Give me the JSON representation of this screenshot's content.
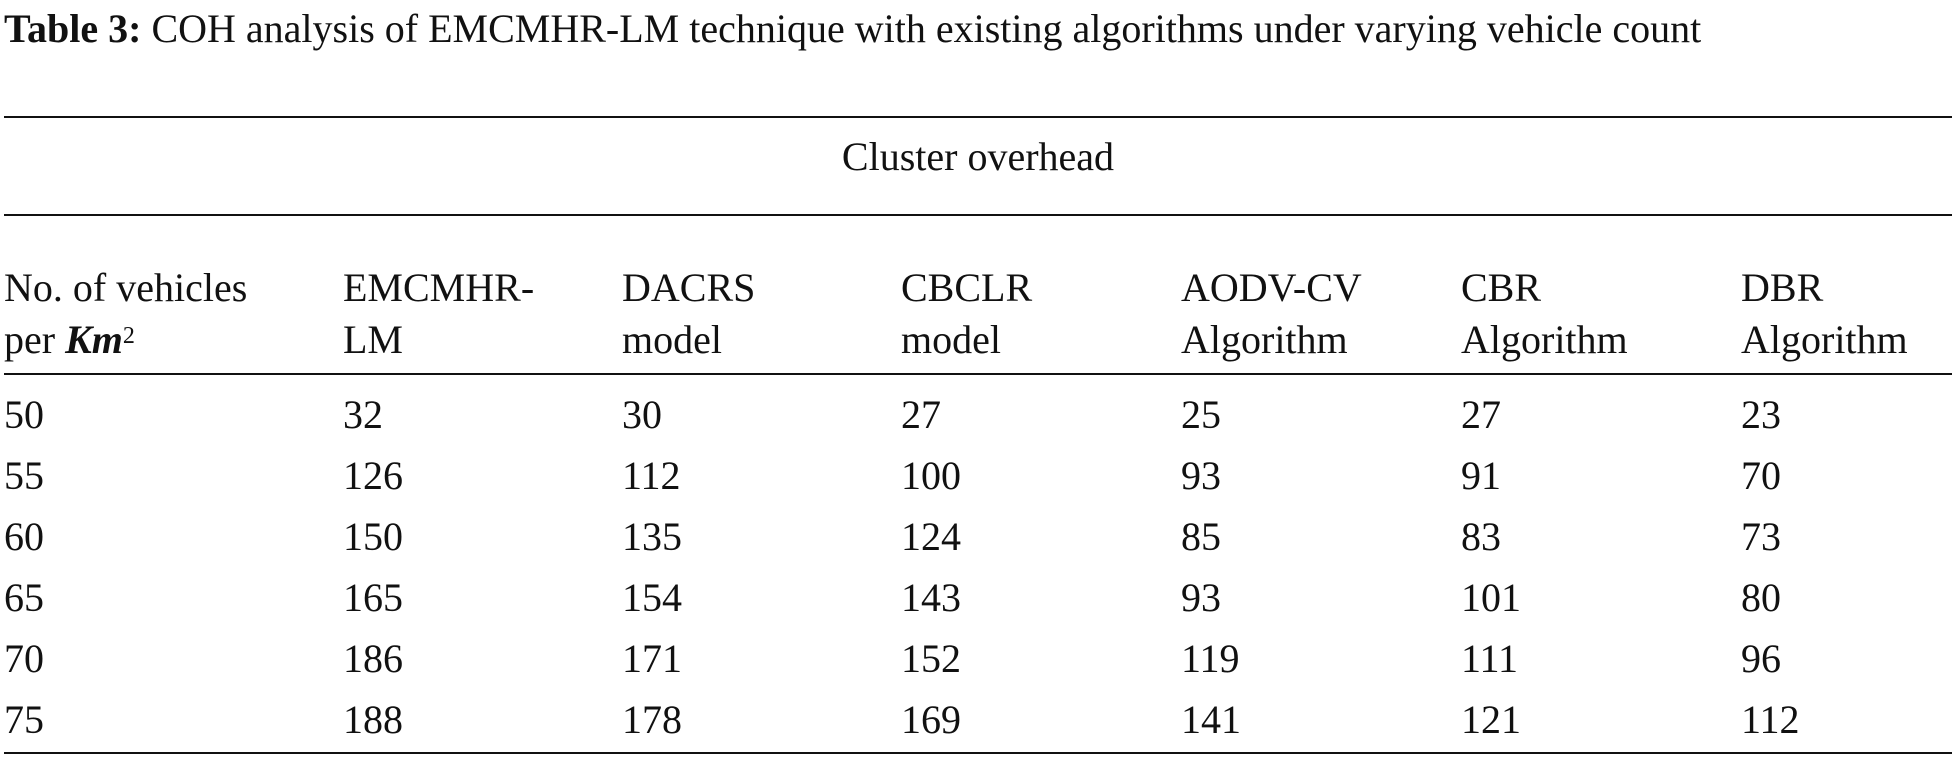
{
  "caption": {
    "label": "Table 3:",
    "text": " COH analysis of EMCMHR-LM technique with existing algorithms under varying vehicle count"
  },
  "table": {
    "span_header": "Cluster overhead",
    "columns": [
      {
        "line1": "No. of vehicles",
        "line2_prefix": "per ",
        "line2_unit": "Km",
        "line2_sup": "2"
      },
      {
        "line1": "EMCMHR-",
        "line2": "LM"
      },
      {
        "line1": "DACRS",
        "line2": "model"
      },
      {
        "line1": "CBCLR",
        "line2": "model"
      },
      {
        "line1": "AODV-CV",
        "line2": "Algorithm"
      },
      {
        "line1": "CBR",
        "line2": "Algorithm"
      },
      {
        "line1": "DBR",
        "line2": "Algorithm"
      }
    ],
    "rows": [
      [
        "50",
        "32",
        "30",
        "27",
        "25",
        "27",
        "23"
      ],
      [
        "55",
        "126",
        "112",
        "100",
        "93",
        "91",
        "70"
      ],
      [
        "60",
        "150",
        "135",
        "124",
        "85",
        "83",
        "73"
      ],
      [
        "65",
        "165",
        "154",
        "143",
        "93",
        "101",
        "80"
      ],
      [
        "70",
        "186",
        "171",
        "152",
        "119",
        "111",
        "96"
      ],
      [
        "75",
        "188",
        "178",
        "169",
        "141",
        "121",
        "112"
      ]
    ]
  }
}
